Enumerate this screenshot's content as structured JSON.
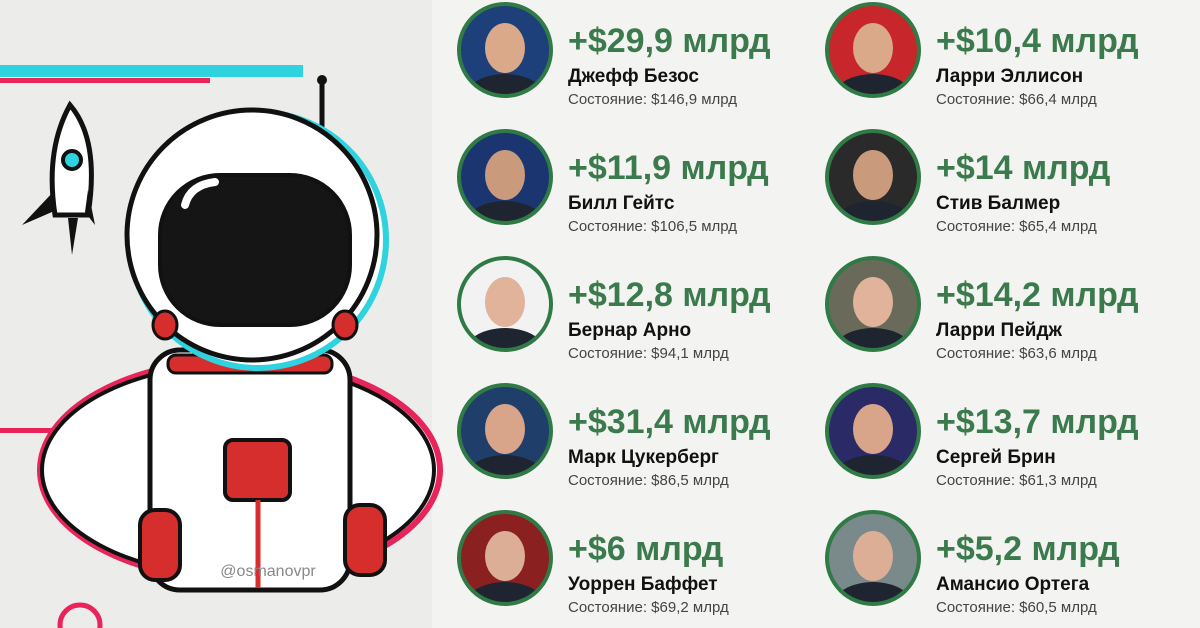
{
  "watermark": "@osmanovpr",
  "people": [
    {
      "gain": "+$29,9 млрд",
      "name": "Джефф Безос",
      "net_worth": "Состояние: $146,9 млрд"
    },
    {
      "gain": "+$11,9 млрд",
      "name": "Билл Гейтс",
      "net_worth": "Состояние: $106,5 млрд"
    },
    {
      "gain": "+$12,8 млрд",
      "name": "Бернар Арно",
      "net_worth": "Состояние: $94,1 млрд"
    },
    {
      "gain": "+$31,4 млрд",
      "name": "Марк Цукерберг",
      "net_worth": "Состояние: $86,5 млрд"
    },
    {
      "gain": "+$6 млрд",
      "name": "Уоррен Баффет",
      "net_worth": "Состояние: $69,2 млрд"
    },
    {
      "gain": "+$10,4 млрд",
      "name": "Ларри Эллисон",
      "net_worth": "Состояние: $66,4 млрд"
    },
    {
      "gain": "+$14 млрд",
      "name": "Стив Балмер",
      "net_worth": "Состояние: $65,4 млрд"
    },
    {
      "gain": "+$14,2 млрд",
      "name": "Ларри Пейдж",
      "net_worth": "Состояние: $63,6 млрд"
    },
    {
      "gain": "+$13,7 млрд",
      "name": "Сергей Брин",
      "net_worth": "Состояние: $61,3 млрд"
    },
    {
      "gain": "+$5,2 млрд",
      "name": "Амансио Ортега",
      "net_worth": "Состояние: $60,5 млрд"
    }
  ]
}
